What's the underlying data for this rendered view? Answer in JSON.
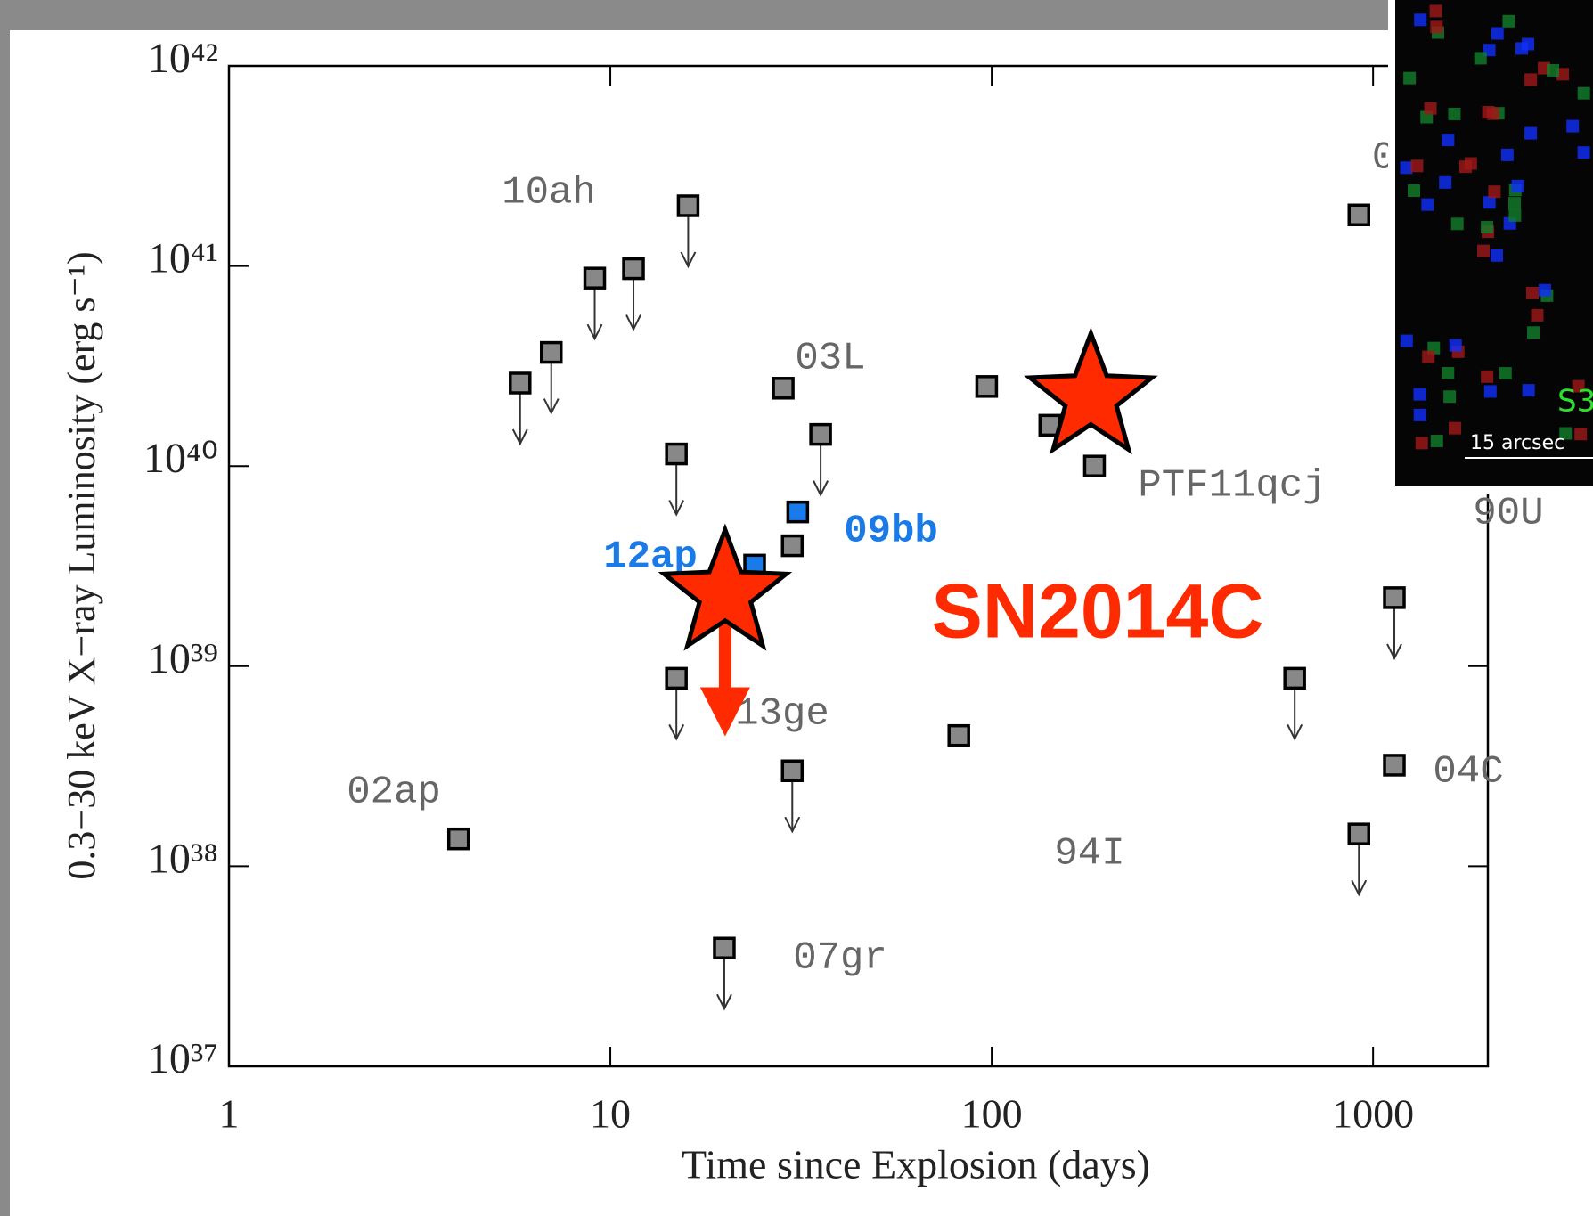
{
  "chart_data": {
    "type": "scatter",
    "xlabel": "Time since Explosion (days)",
    "ylabel": "0.3−30 keV X−ray Luminosity (erg s⁻¹)",
    "xscale": "log",
    "yscale": "log",
    "xlim": [
      1,
      2000
    ],
    "ylim": [
      1e+37,
      1e+42
    ],
    "xticks": [
      1,
      10,
      100,
      1000
    ],
    "yticks": [
      {
        "value": 1e+37,
        "label": "10³⁷"
      },
      {
        "value": 1e+38,
        "label": "10³⁸"
      },
      {
        "value": 1e+39,
        "label": "10³⁹"
      },
      {
        "value": 1e+40,
        "label": "10⁴⁰"
      },
      {
        "value": 1e+41,
        "label": "10⁴¹"
      },
      {
        "value": 1e+42,
        "label": "10⁴²"
      }
    ],
    "series": [
      {
        "name": "02ap",
        "color": "#888888",
        "x": [
          4.0
        ],
        "values": [
          1.37e+38
        ],
        "upper_limit": [
          false
        ]
      },
      {
        "name": "10ah",
        "color": "#888888",
        "x": [
          5.8,
          7.0,
          9.1,
          11.5,
          16
        ],
        "values": [
          2.6e+40,
          3.7e+40,
          8.7e+40,
          9.7e+40,
          2e+41
        ],
        "upper_limit": [
          true,
          true,
          true,
          true,
          true
        ]
      },
      {
        "name": "03L",
        "color": "#888888",
        "x": [
          28.4,
          35.6
        ],
        "values": [
          2.45e+40,
          1.44e+40
        ],
        "upper_limit": [
          false,
          true
        ]
      },
      {
        "name": "07gr",
        "color": "#888888",
        "x": [
          19.9
        ],
        "values": [
          3.9e+37
        ],
        "upper_limit": [
          true
        ]
      },
      {
        "name": "13ge",
        "color": "#888888",
        "x": [
          14.9,
          14.9,
          30,
          30
        ],
        "values": [
          1.15e+40,
          8.7e+38,
          4e+39,
          3e+38
        ],
        "upper_limit": [
          true,
          true,
          false,
          true
        ]
      },
      {
        "name": "09bb",
        "color": "#1a7be8",
        "x": [
          31
        ],
        "values": [
          5.9e+39
        ],
        "upper_limit": [
          false
        ]
      },
      {
        "name": "12ap",
        "color": "#1a7be8",
        "x": [
          23.9
        ],
        "values": [
          3.2e+39
        ],
        "upper_limit": [
          false
        ]
      },
      {
        "name": "PTF11qcj",
        "color": "#888888",
        "x": [
          97,
          142,
          186
        ],
        "values": [
          2.5e+40,
          1.6e+40,
          1e+40
        ],
        "upper_limit": [
          false,
          false,
          false
        ]
      },
      {
        "name": "94I",
        "color": "#888888",
        "x": [
          82
        ],
        "values": [
          4.5e+38
        ],
        "upper_limit": [
          false
        ]
      },
      {
        "name": "90U",
        "color": "#888888",
        "x": [
          623,
          1137
        ],
        "values": [
          8.7e+38,
          2.2e+39
        ],
        "upper_limit": [
          true,
          true
        ]
      },
      {
        "name": "04C",
        "color": "#888888",
        "x": [
          1137,
          918
        ],
        "values": [
          3.2e+38,
          1.45e+38
        ],
        "upper_limit": [
          false,
          true
        ]
      },
      {
        "name": "0",
        "color": "#888888",
        "x": [
          918
        ],
        "values": [
          1.8e+41
        ],
        "upper_limit": [
          false
        ]
      },
      {
        "name": "SN2014C",
        "color": "#ff2a00",
        "marker": "star",
        "x": [
          20,
          182
        ],
        "values": [
          2.3e+39,
          2.2e+40
        ],
        "upper_limit": [
          true,
          false
        ]
      }
    ]
  },
  "inset": {
    "label": "S3",
    "scale": "15 arcsec"
  }
}
